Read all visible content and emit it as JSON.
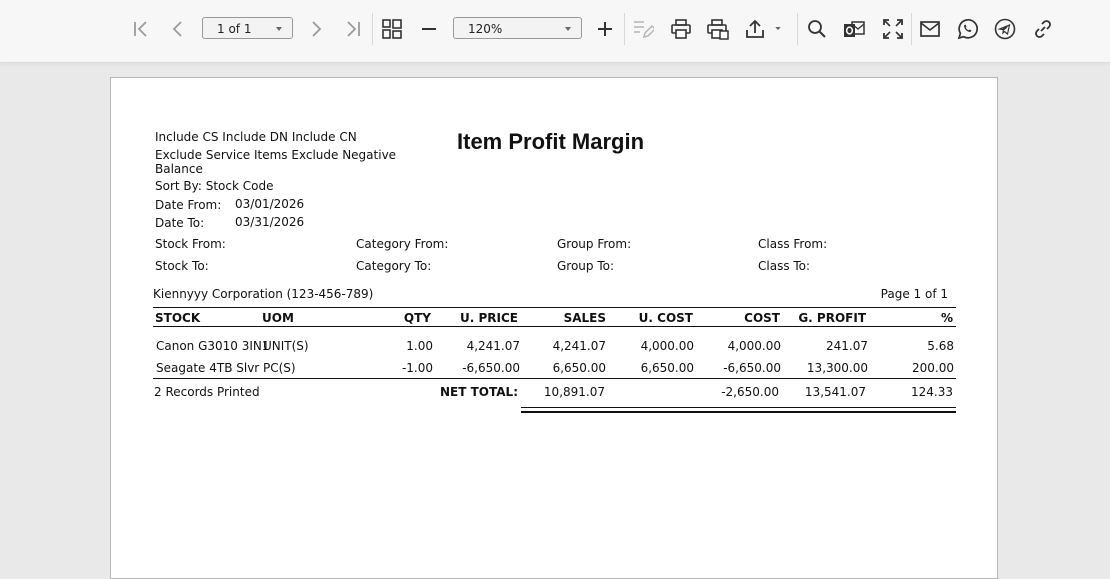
{
  "toolbar": {
    "page_select": "1 of 1",
    "zoom_select": "120%"
  },
  "report": {
    "filters_line1": "Include CS Include DN Include CN",
    "filters_line2": "Exclude Service Items Exclude Negative",
    "filters_line3": "Balance",
    "title": "Item Profit Margin",
    "sort_by": "Sort By: Stock Code",
    "date_from_label": "Date From:",
    "date_from": "03/01/2026",
    "date_to_label": "Date To:",
    "date_to": "03/31/2026",
    "stock_from": "Stock From:",
    "stock_to": "Stock To:",
    "category_from": "Category From:",
    "category_to": "Category To:",
    "group_from": "Group From:",
    "group_to": "Group To:",
    "class_from": "Class From:",
    "class_to": "Class To:",
    "company": "Kiennyyy Corporation (123-456-789)",
    "page_info": "Page 1 of 1",
    "columns": [
      "STOCK",
      "UOM",
      "QTY",
      "U. PRICE",
      "SALES",
      "U. COST",
      "COST",
      "G. PROFIT",
      "%"
    ],
    "rows": [
      [
        "Canon G3010 3IN1",
        "UNIT(S)",
        "1.00",
        "4,241.07",
        "4,241.07",
        "4,000.00",
        "4,000.00",
        "241.07",
        "5.68"
      ],
      [
        "Seagate 4TB Slvr",
        "PC(S)",
        "-1.00",
        "-6,650.00",
        "6,650.00",
        "6,650.00",
        "-6,650.00",
        "13,300.00",
        "200.00"
      ]
    ],
    "records_printed": "2 Records Printed",
    "net_total_label": "NET TOTAL:",
    "totals": {
      "sales": "10,891.07",
      "cost": "-2,650.00",
      "gprofit": "13,541.07",
      "pct": "124.33"
    }
  }
}
